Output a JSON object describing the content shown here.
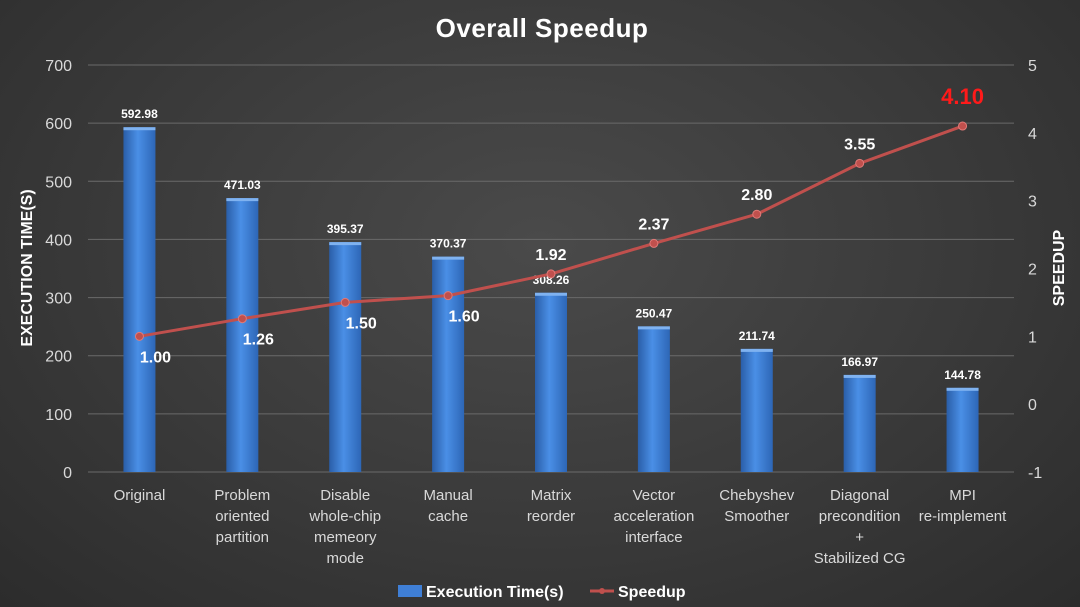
{
  "chart_data": {
    "type": "bar+line",
    "title": "Overall Speedup",
    "categories": [
      [
        "Original"
      ],
      [
        "Problem",
        "oriented",
        "partition"
      ],
      [
        "Disable",
        "whole-chip",
        "memeory",
        "mode"
      ],
      [
        "Manual",
        "cache"
      ],
      [
        "Matrix",
        "reorder"
      ],
      [
        "Vector",
        "acceleration",
        "interface"
      ],
      [
        "Chebyshev",
        "Smoother"
      ],
      [
        "Diagonal",
        "precondition",
        "+",
        "Stabilized CG"
      ],
      [
        "MPI",
        "re-implement"
      ]
    ],
    "series": [
      {
        "name": "Execution Time(s)",
        "type": "bar",
        "axis": "left",
        "color": "#3f7fd6",
        "values": [
          592.98,
          471.03,
          395.37,
          370.37,
          308.26,
          250.47,
          211.74,
          166.97,
          144.78
        ],
        "labels": [
          "592.98",
          "471.03",
          "395.37",
          "370.37",
          "308.26",
          "250.47",
          "211.74",
          "166.97",
          "144.78"
        ]
      },
      {
        "name": "Speedup",
        "type": "line",
        "axis": "right",
        "color": "#c0504d",
        "values": [
          1.0,
          1.26,
          1.5,
          1.6,
          1.92,
          2.37,
          2.8,
          3.55,
          4.1
        ],
        "labels": [
          "1.00",
          "1.26",
          "1.50",
          "1.60",
          "1.92",
          "2.37",
          "2.80",
          "3.55",
          "4.10"
        ],
        "label_positions": [
          "below",
          "below",
          "below",
          "below",
          "above",
          "above",
          "above",
          "above",
          "above"
        ]
      }
    ],
    "ylabel": "EXECUTION TIME(S)",
    "y2label": "SPEEDUP",
    "ylim": [
      0,
      700
    ],
    "yticks": [
      0,
      100,
      200,
      300,
      400,
      500,
      600,
      700
    ],
    "y2lim": [
      -1,
      5
    ],
    "y2ticks": [
      -1,
      0,
      1,
      2,
      3,
      4,
      5
    ],
    "grid": true,
    "legend": "bottom"
  }
}
